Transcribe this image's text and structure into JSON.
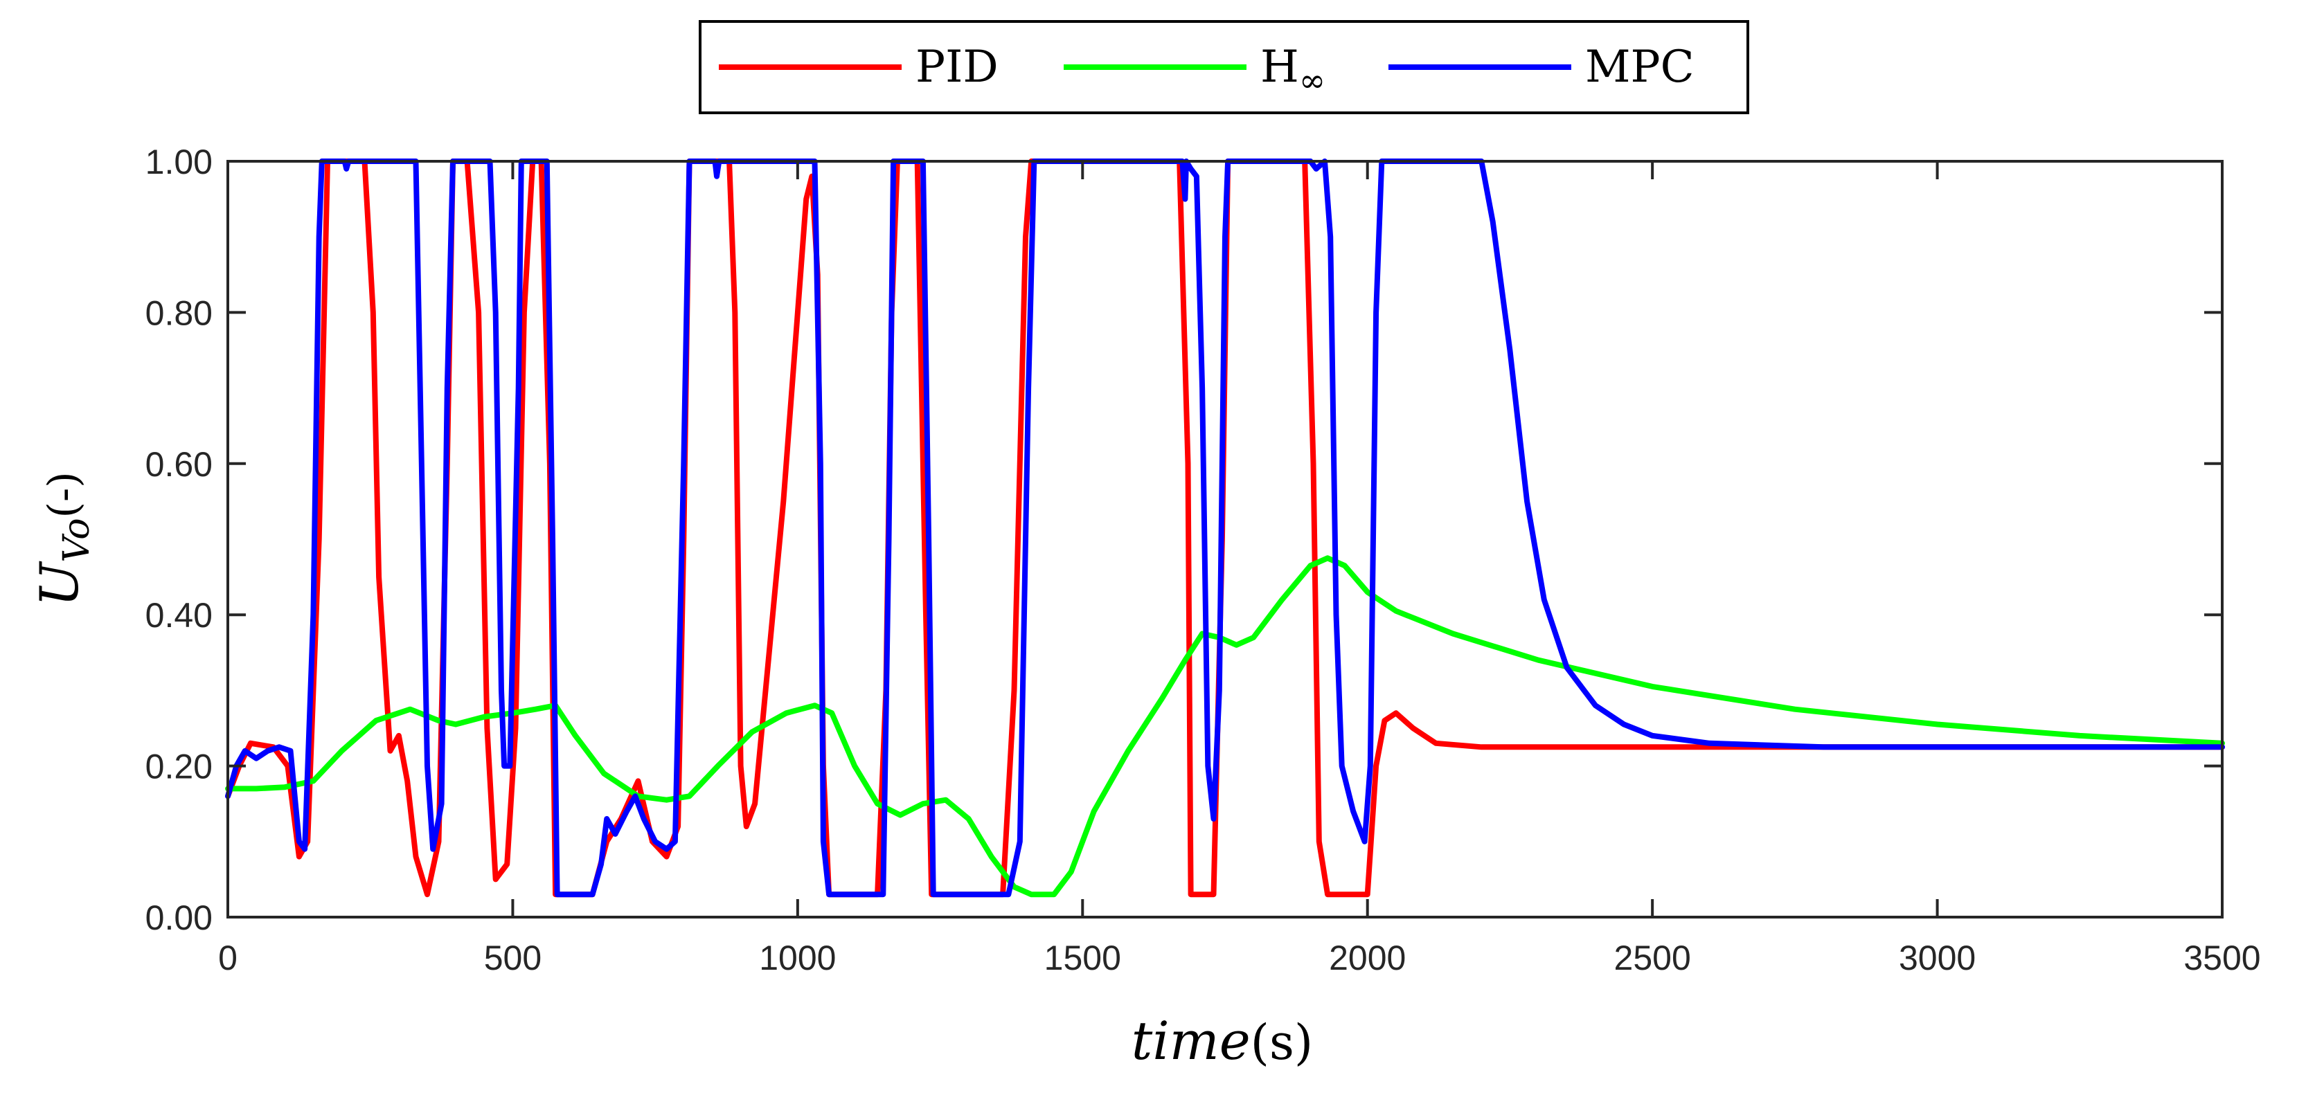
{
  "chart_data": {
    "type": "line",
    "xlabel": {
      "main": "time",
      "unit": "(s)"
    },
    "ylabel": {
      "main": "U",
      "sub": "Vo",
      "unit": "(-)"
    },
    "xlim": [
      0,
      3500
    ],
    "ylim": [
      0,
      1
    ],
    "x_ticks": [
      "0",
      "500",
      "1000",
      "1500",
      "2000",
      "2500",
      "3000",
      "3500"
    ],
    "y_ticks": [
      "0.00",
      "0.20",
      "0.40",
      "0.60",
      "0.80",
      "1.00"
    ],
    "grid": false,
    "legend": {
      "placement": "top-center, outside plot",
      "items": [
        {
          "label": "PID",
          "sub": "",
          "color": "#ff0000"
        },
        {
          "label": "H",
          "sub": "∞",
          "color": "#00ff00"
        },
        {
          "label": "MPC",
          "sub": "",
          "color": "#0000ff"
        }
      ]
    },
    "series": [
      {
        "name": "PID",
        "color": "#ff0000",
        "points": [
          [
            0,
            0.16
          ],
          [
            20,
            0.2
          ],
          [
            40,
            0.23
          ],
          [
            80,
            0.225
          ],
          [
            105,
            0.2
          ],
          [
            125,
            0.08
          ],
          [
            140,
            0.1
          ],
          [
            160,
            0.5
          ],
          [
            175,
            1
          ],
          [
            240,
            1
          ],
          [
            255,
            0.8
          ],
          [
            265,
            0.45
          ],
          [
            285,
            0.22
          ],
          [
            300,
            0.24
          ],
          [
            315,
            0.18
          ],
          [
            330,
            0.08
          ],
          [
            350,
            0.03
          ],
          [
            370,
            0.1
          ],
          [
            385,
            0.6
          ],
          [
            395,
            1
          ],
          [
            420,
            1
          ],
          [
            440,
            0.8
          ],
          [
            455,
            0.25
          ],
          [
            470,
            0.05
          ],
          [
            490,
            0.07
          ],
          [
            505,
            0.25
          ],
          [
            520,
            0.8
          ],
          [
            535,
            1
          ],
          [
            550,
            1
          ],
          [
            565,
            0.6
          ],
          [
            575,
            0.03
          ],
          [
            640,
            0.03
          ],
          [
            665,
            0.1
          ],
          [
            690,
            0.13
          ],
          [
            720,
            0.18
          ],
          [
            745,
            0.1
          ],
          [
            770,
            0.08
          ],
          [
            790,
            0.12
          ],
          [
            800,
            0.5
          ],
          [
            810,
            1
          ],
          [
            880,
            1
          ],
          [
            890,
            0.8
          ],
          [
            900,
            0.2
          ],
          [
            910,
            0.12
          ],
          [
            925,
            0.15
          ],
          [
            950,
            0.35
          ],
          [
            975,
            0.55
          ],
          [
            1000,
            0.8
          ],
          [
            1015,
            0.95
          ],
          [
            1025,
            0.98
          ],
          [
            1035,
            0.85
          ],
          [
            1045,
            0.2
          ],
          [
            1055,
            0.03
          ],
          [
            1140,
            0.03
          ],
          [
            1155,
            0.3
          ],
          [
            1165,
            0.8
          ],
          [
            1175,
            1
          ],
          [
            1210,
            1
          ],
          [
            1225,
            0.4
          ],
          [
            1235,
            0.03
          ],
          [
            1360,
            0.03
          ],
          [
            1380,
            0.3
          ],
          [
            1400,
            0.9
          ],
          [
            1410,
            1
          ],
          [
            1670,
            1
          ],
          [
            1685,
            0.6
          ],
          [
            1690,
            0.03
          ],
          [
            1730,
            0.03
          ],
          [
            1745,
            0.5
          ],
          [
            1755,
            1
          ],
          [
            1890,
            1
          ],
          [
            1905,
            0.6
          ],
          [
            1915,
            0.1
          ],
          [
            1930,
            0.03
          ],
          [
            2000,
            0.03
          ],
          [
            2015,
            0.2
          ],
          [
            2030,
            0.26
          ],
          [
            2050,
            0.27
          ],
          [
            2080,
            0.25
          ],
          [
            2120,
            0.23
          ],
          [
            2200,
            0.225
          ],
          [
            2500,
            0.225
          ],
          [
            3500,
            0.225
          ]
        ]
      },
      {
        "name": "H∞",
        "color": "#00ff00",
        "points": [
          [
            0,
            0.17
          ],
          [
            50,
            0.17
          ],
          [
            100,
            0.172
          ],
          [
            150,
            0.18
          ],
          [
            200,
            0.22
          ],
          [
            260,
            0.26
          ],
          [
            320,
            0.275
          ],
          [
            370,
            0.26
          ],
          [
            400,
            0.255
          ],
          [
            450,
            0.265
          ],
          [
            500,
            0.27
          ],
          [
            540,
            0.275
          ],
          [
            575,
            0.28
          ],
          [
            610,
            0.24
          ],
          [
            660,
            0.19
          ],
          [
            720,
            0.16
          ],
          [
            770,
            0.155
          ],
          [
            810,
            0.16
          ],
          [
            860,
            0.2
          ],
          [
            920,
            0.245
          ],
          [
            980,
            0.27
          ],
          [
            1030,
            0.28
          ],
          [
            1060,
            0.27
          ],
          [
            1100,
            0.2
          ],
          [
            1140,
            0.15
          ],
          [
            1180,
            0.135
          ],
          [
            1220,
            0.15
          ],
          [
            1260,
            0.155
          ],
          [
            1300,
            0.13
          ],
          [
            1340,
            0.08
          ],
          [
            1380,
            0.04
          ],
          [
            1410,
            0.03
          ],
          [
            1450,
            0.03
          ],
          [
            1480,
            0.06
          ],
          [
            1520,
            0.14
          ],
          [
            1580,
            0.22
          ],
          [
            1640,
            0.29
          ],
          [
            1680,
            0.34
          ],
          [
            1710,
            0.375
          ],
          [
            1740,
            0.37
          ],
          [
            1770,
            0.36
          ],
          [
            1800,
            0.37
          ],
          [
            1850,
            0.42
          ],
          [
            1900,
            0.465
          ],
          [
            1930,
            0.475
          ],
          [
            1960,
            0.465
          ],
          [
            2000,
            0.43
          ],
          [
            2050,
            0.405
          ],
          [
            2150,
            0.375
          ],
          [
            2300,
            0.34
          ],
          [
            2500,
            0.305
          ],
          [
            2750,
            0.275
          ],
          [
            3000,
            0.255
          ],
          [
            3250,
            0.24
          ],
          [
            3500,
            0.23
          ]
        ]
      },
      {
        "name": "MPC",
        "color": "#0000ff",
        "points": [
          [
            0,
            0.16
          ],
          [
            15,
            0.2
          ],
          [
            30,
            0.22
          ],
          [
            50,
            0.21
          ],
          [
            70,
            0.22
          ],
          [
            90,
            0.225
          ],
          [
            110,
            0.22
          ],
          [
            125,
            0.1
          ],
          [
            135,
            0.09
          ],
          [
            150,
            0.4
          ],
          [
            160,
            0.9
          ],
          [
            165,
            1
          ],
          [
            205,
            1
          ],
          [
            208,
            0.99
          ],
          [
            212,
            1
          ],
          [
            330,
            1
          ],
          [
            340,
            0.6
          ],
          [
            350,
            0.2
          ],
          [
            360,
            0.09
          ],
          [
            375,
            0.15
          ],
          [
            385,
            0.7
          ],
          [
            395,
            1
          ],
          [
            460,
            1
          ],
          [
            470,
            0.8
          ],
          [
            480,
            0.3
          ],
          [
            485,
            0.2
          ],
          [
            495,
            0.2
          ],
          [
            510,
            0.7
          ],
          [
            515,
            1
          ],
          [
            560,
            1
          ],
          [
            570,
            0.5
          ],
          [
            578,
            0.03
          ],
          [
            640,
            0.03
          ],
          [
            655,
            0.07
          ],
          [
            665,
            0.13
          ],
          [
            680,
            0.11
          ],
          [
            700,
            0.14
          ],
          [
            715,
            0.16
          ],
          [
            730,
            0.13
          ],
          [
            750,
            0.1
          ],
          [
            770,
            0.09
          ],
          [
            785,
            0.1
          ],
          [
            800,
            0.6
          ],
          [
            810,
            1
          ],
          [
            855,
            1
          ],
          [
            858,
            0.98
          ],
          [
            862,
            1
          ],
          [
            1030,
            1
          ],
          [
            1040,
            0.6
          ],
          [
            1045,
            0.1
          ],
          [
            1055,
            0.03
          ],
          [
            1150,
            0.03
          ],
          [
            1160,
            0.5
          ],
          [
            1168,
            1
          ],
          [
            1220,
            1
          ],
          [
            1230,
            0.5
          ],
          [
            1238,
            0.03
          ],
          [
            1370,
            0.03
          ],
          [
            1390,
            0.1
          ],
          [
            1405,
            0.7
          ],
          [
            1415,
            1
          ],
          [
            1675,
            1
          ],
          [
            1680,
            0.95
          ],
          [
            1682,
            1
          ],
          [
            1690,
            0.99
          ],
          [
            1700,
            0.98
          ],
          [
            1710,
            0.7
          ],
          [
            1720,
            0.2
          ],
          [
            1730,
            0.13
          ],
          [
            1740,
            0.3
          ],
          [
            1750,
            0.9
          ],
          [
            1755,
            1
          ],
          [
            1900,
            1
          ],
          [
            1910,
            0.99
          ],
          [
            1925,
            1
          ],
          [
            1935,
            0.9
          ],
          [
            1945,
            0.4
          ],
          [
            1955,
            0.2
          ],
          [
            1975,
            0.14
          ],
          [
            1995,
            0.1
          ],
          [
            2005,
            0.2
          ],
          [
            2015,
            0.8
          ],
          [
            2025,
            1
          ],
          [
            2200,
            1
          ],
          [
            2220,
            0.92
          ],
          [
            2250,
            0.75
          ],
          [
            2280,
            0.55
          ],
          [
            2310,
            0.42
          ],
          [
            2350,
            0.33
          ],
          [
            2400,
            0.28
          ],
          [
            2450,
            0.255
          ],
          [
            2500,
            0.24
          ],
          [
            2600,
            0.23
          ],
          [
            2800,
            0.225
          ],
          [
            3000,
            0.225
          ],
          [
            3500,
            0.225
          ]
        ]
      }
    ]
  }
}
